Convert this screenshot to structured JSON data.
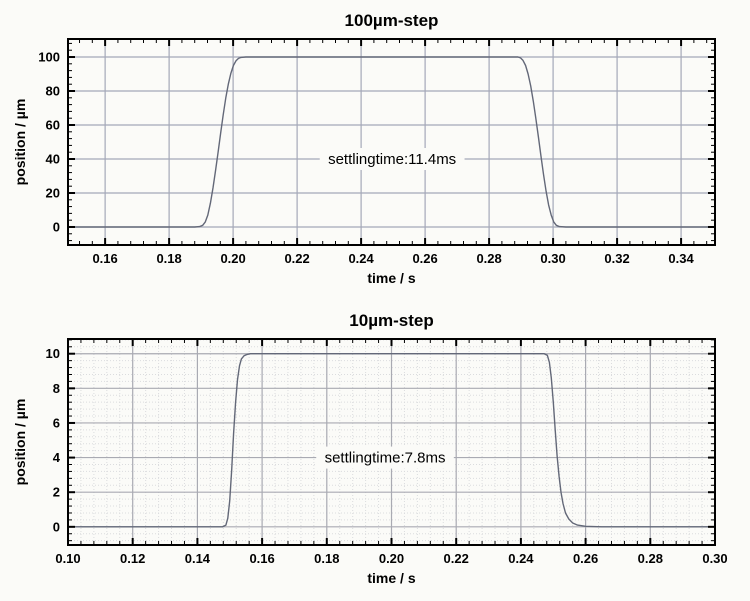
{
  "page": {
    "background": "#fbfbf8",
    "description_visible_text_only": true
  },
  "chart_data": [
    {
      "type": "line",
      "title": "100µm-step",
      "xlabel": "time  / s",
      "ylabel": "position / µm",
      "annotation": {
        "text": "settlingtime:11.4ms",
        "x": 0.2497,
        "y": 40
      },
      "settling_time_ms": 11.4,
      "xlim": [
        0.1484,
        0.3506
      ],
      "ylim": [
        -10.6,
        110.6
      ],
      "xticks": {
        "values": [
          0.16,
          0.18,
          0.2,
          0.22,
          0.24,
          0.26,
          0.28,
          0.3,
          0.32,
          0.34
        ],
        "labels": [
          "0.16",
          "0.18",
          "0.20",
          "0.22",
          "0.24",
          "0.26",
          "0.28",
          "0.30",
          "0.32",
          "0.34"
        ]
      },
      "yticks": {
        "values": [
          0,
          20,
          40,
          60,
          80,
          100
        ],
        "labels": [
          "0",
          "20",
          "40",
          "60",
          "80",
          "100"
        ]
      },
      "minor": {
        "x_step": 0.004,
        "y_step": 4,
        "gridlines": false
      },
      "grid": "on-major",
      "legend": "none",
      "colors": {
        "grid": "#a4a8b8",
        "minor_grid": "#d9dade",
        "trace": "#636878",
        "frame": "#000000"
      },
      "series": [
        {
          "name": "position",
          "points": [
            [
              0.1484,
              0
            ],
            [
              0.17,
              0
            ],
            [
              0.188,
              0
            ],
            [
              0.1895,
              0.2
            ],
            [
              0.1905,
              1
            ],
            [
              0.1913,
              3
            ],
            [
              0.1921,
              7
            ],
            [
              0.1929,
              14
            ],
            [
              0.1937,
              23
            ],
            [
              0.1945,
              33
            ],
            [
              0.1953,
              44
            ],
            [
              0.1961,
              55
            ],
            [
              0.1969,
              66
            ],
            [
              0.1977,
              76
            ],
            [
              0.1985,
              84
            ],
            [
              0.1993,
              90.5
            ],
            [
              0.2001,
              95
            ],
            [
              0.2009,
              97.8
            ],
            [
              0.2017,
              99.2
            ],
            [
              0.2025,
              99.8
            ],
            [
              0.204,
              100
            ],
            [
              0.22,
              100
            ],
            [
              0.26,
              100
            ],
            [
              0.289,
              100
            ],
            [
              0.2898,
              99.5
            ],
            [
              0.2906,
              98
            ],
            [
              0.2914,
              95
            ],
            [
              0.2922,
              90
            ],
            [
              0.293,
              83
            ],
            [
              0.2938,
              74
            ],
            [
              0.2946,
              64
            ],
            [
              0.2954,
              53
            ],
            [
              0.2962,
              42
            ],
            [
              0.297,
              31
            ],
            [
              0.2978,
              21
            ],
            [
              0.2986,
              13
            ],
            [
              0.2994,
              7
            ],
            [
              0.3002,
              3
            ],
            [
              0.301,
              1
            ],
            [
              0.302,
              0.2
            ],
            [
              0.304,
              0
            ],
            [
              0.33,
              0
            ],
            [
              0.3506,
              0
            ]
          ]
        }
      ]
    },
    {
      "type": "line",
      "title": "10µm-step",
      "xlabel": "time  / s",
      "ylabel": "position / µm",
      "annotation": {
        "text": "settlingtime:7.8ms",
        "x": 0.198,
        "y": 4
      },
      "settling_time_ms": 7.8,
      "xlim": [
        0.1,
        0.3
      ],
      "ylim": [
        -1.05,
        10.85
      ],
      "xticks": {
        "values": [
          0.1,
          0.12,
          0.14,
          0.16,
          0.18,
          0.2,
          0.22,
          0.24,
          0.26,
          0.28,
          0.3
        ],
        "labels": [
          "0.10",
          "0.12",
          "0.14",
          "0.16",
          "0.18",
          "0.20",
          "0.22",
          "0.24",
          "0.26",
          "0.28",
          "0.30"
        ]
      },
      "yticks": {
        "values": [
          0,
          2,
          4,
          6,
          8,
          10
        ],
        "labels": [
          "0",
          "2",
          "4",
          "6",
          "8",
          "10"
        ]
      },
      "minor": {
        "x_step": 0.004,
        "y_step": 0.4,
        "gridlines": true
      },
      "grid": "on-major-and-minor",
      "legend": "none",
      "colors": {
        "grid": "#a9aab2",
        "minor_grid": "#dbdcde",
        "trace": "#636878",
        "frame": "#000000"
      },
      "series": [
        {
          "name": "position",
          "points": [
            [
              0.1,
              0
            ],
            [
              0.13,
              0
            ],
            [
              0.1478,
              0
            ],
            [
              0.1488,
              0.1
            ],
            [
              0.1494,
              0.5
            ],
            [
              0.15,
              1.5
            ],
            [
              0.1506,
              3.3
            ],
            [
              0.1512,
              5.4
            ],
            [
              0.1518,
              7.2
            ],
            [
              0.1524,
              8.5
            ],
            [
              0.153,
              9.3
            ],
            [
              0.1536,
              9.7
            ],
            [
              0.1544,
              9.88
            ],
            [
              0.1552,
              9.95
            ],
            [
              0.1564,
              10
            ],
            [
              0.17,
              10
            ],
            [
              0.21,
              10
            ],
            [
              0.2472,
              10
            ],
            [
              0.2482,
              9.9
            ],
            [
              0.2488,
              9.5
            ],
            [
              0.2494,
              8.6
            ],
            [
              0.25,
              7.2
            ],
            [
              0.2506,
              5.6
            ],
            [
              0.2512,
              4.1
            ],
            [
              0.2518,
              2.9
            ],
            [
              0.2524,
              2.0
            ],
            [
              0.253,
              1.35
            ],
            [
              0.2538,
              0.8
            ],
            [
              0.2548,
              0.45
            ],
            [
              0.256,
              0.22
            ],
            [
              0.2575,
              0.1
            ],
            [
              0.26,
              0.03
            ],
            [
              0.265,
              0
            ],
            [
              0.3,
              0
            ]
          ]
        }
      ]
    }
  ]
}
